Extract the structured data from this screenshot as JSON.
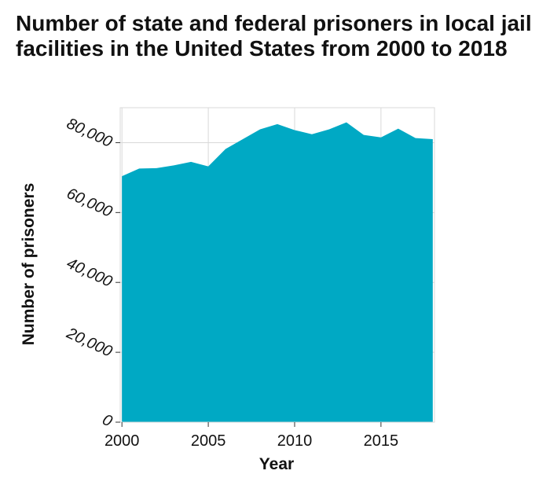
{
  "chart_data": {
    "type": "area",
    "title": "Number of state and federal prisoners in local jail facilities in the United States from 2000 to 2018",
    "xlabel": "Year",
    "ylabel": "Number of prisoners",
    "x": [
      2000,
      2001,
      2002,
      2003,
      2004,
      2005,
      2006,
      2007,
      2008,
      2009,
      2010,
      2011,
      2012,
      2013,
      2014,
      2015,
      2016,
      2017,
      2018
    ],
    "series": [
      {
        "values": [
          70400,
          72600,
          72700,
          73500,
          74500,
          73200,
          78200,
          81000,
          83800,
          85300,
          83600,
          82400,
          83800,
          85800,
          82200,
          81500,
          84000,
          81300,
          81000
        ]
      }
    ],
    "xlim": [
      1999.9,
      2018.1
    ],
    "ylim": [
      0,
      90000
    ],
    "xticks": [
      2000,
      2005,
      2010,
      2015
    ],
    "xtick_labels": [
      "2000",
      "2005",
      "2010",
      "2015"
    ],
    "yticks": [
      0,
      20000,
      40000,
      60000,
      80000
    ],
    "ytick_labels": [
      "0",
      "20,000",
      "40,000",
      "60,000",
      "80,000"
    ],
    "grid": true,
    "fill_color": "#00a9c4",
    "grid_color": "#d9d9d9"
  }
}
